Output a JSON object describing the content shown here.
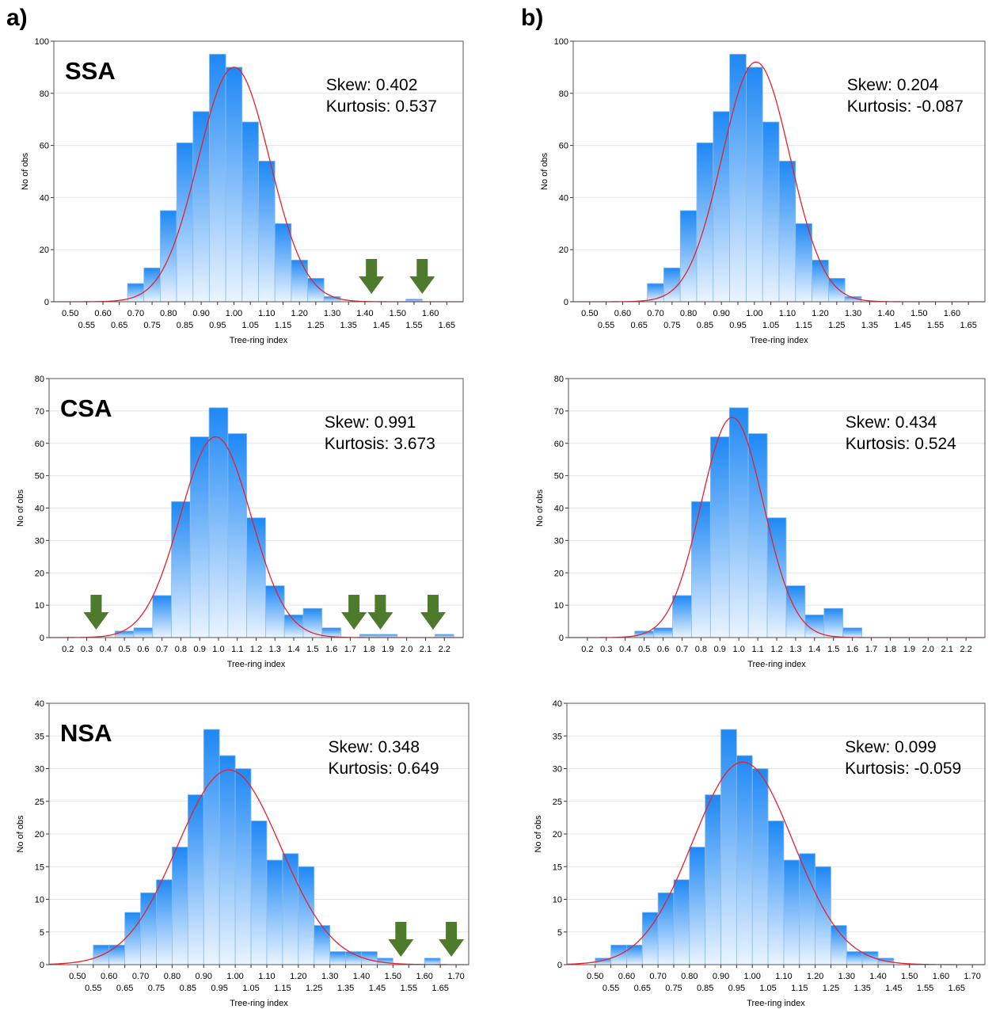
{
  "panel_labels": [
    "a)",
    "b)"
  ],
  "colors": {
    "bar_top": "#1E88F5",
    "bar_bottom": "#EAF4FF",
    "bar_edge": "#8CBCE8",
    "curve": "#E8202A",
    "arrow": "#4E7A2C"
  },
  "chart_data": [
    {
      "id": "ssa-a",
      "type": "bar",
      "region_label": "SSA",
      "stats": [
        "Skew: 0.402",
        "Kurtosis: 0.537"
      ],
      "xlabel": "Tree-ring index",
      "ylabel": "No of obs",
      "xlim": [
        0.45,
        1.7
      ],
      "ylim": [
        0,
        100
      ],
      "yticks": [
        0,
        20,
        40,
        60,
        80,
        100
      ],
      "xticks_upper": [
        "0.50",
        "0.60",
        "0.70",
        "0.80",
        "0.90",
        "1.00",
        "1.10",
        "1.20",
        "1.30",
        "1.40",
        "1.50",
        "1.60"
      ],
      "xticks_lower": [
        "0.55",
        "0.65",
        "0.75",
        "0.85",
        "0.95",
        "1.05",
        "1.15",
        "1.25",
        "1.35",
        "1.45",
        "1.55",
        "1.65"
      ],
      "bin_start": 0.675,
      "bin_width": 0.05,
      "values": [
        7,
        13,
        35,
        61,
        73,
        95,
        90,
        69,
        54,
        30,
        16,
        9,
        2,
        0,
        0,
        0,
        0,
        1
      ],
      "normal": {
        "mean": 1.0,
        "sd": 0.109,
        "peak": 90
      },
      "arrows": [
        1.42,
        1.575
      ]
    },
    {
      "id": "ssa-b",
      "type": "bar",
      "region_label": "",
      "stats": [
        "Skew: 0.204",
        "Kurtosis: -0.087"
      ],
      "xlabel": "Tree-ring index",
      "ylabel": "No of obs",
      "xlim": [
        0.45,
        1.7
      ],
      "ylim": [
        0,
        100
      ],
      "yticks": [
        0,
        20,
        40,
        60,
        80,
        100
      ],
      "xticks_upper": [
        "0.50",
        "0.60",
        "0.70",
        "0.80",
        "0.90",
        "1.00",
        "1.10",
        "1.20",
        "1.30",
        "1.40",
        "1.50",
        "1.60"
      ],
      "xticks_lower": [
        "0.55",
        "0.65",
        "0.75",
        "0.85",
        "0.95",
        "1.05",
        "1.15",
        "1.25",
        "1.35",
        "1.45",
        "1.55",
        "1.65"
      ],
      "bin_start": 0.675,
      "bin_width": 0.05,
      "values": [
        7,
        13,
        35,
        61,
        73,
        95,
        90,
        69,
        54,
        30,
        16,
        9,
        2
      ],
      "normal": {
        "mean": 1.005,
        "sd": 0.103,
        "peak": 92
      },
      "arrows": []
    },
    {
      "id": "csa-a",
      "type": "bar",
      "region_label": "CSA",
      "stats": [
        "Skew: 0.991",
        "Kurtosis: 3.673"
      ],
      "xlabel": "Tree-ring index",
      "ylabel": "No of obs",
      "xlim": [
        0.1,
        2.3
      ],
      "ylim": [
        0,
        80
      ],
      "yticks": [
        0,
        10,
        20,
        30,
        40,
        50,
        60,
        70,
        80
      ],
      "xticks_upper": [
        "0.2",
        "0.3",
        "0.4",
        "0.5",
        "0.6",
        "0.7",
        "0.8",
        "0.9",
        "1.0",
        "1.1",
        "1.2",
        "1.3",
        "1.4",
        "1.5",
        "1.6",
        "1.7",
        "1.8",
        "1.9",
        "2.0",
        "2.1",
        "2.2"
      ],
      "xticks_lower": [],
      "bin_start": 0.35,
      "bin_width": 0.1,
      "values": [
        0,
        2,
        3,
        13,
        42,
        62,
        71,
        63,
        37,
        16,
        7,
        9,
        3,
        0,
        1,
        1,
        0,
        0,
        1
      ],
      "normal": {
        "mean": 0.985,
        "sd": 0.188,
        "peak": 62
      },
      "arrows": [
        0.35,
        1.72,
        1.86,
        2.14
      ]
    },
    {
      "id": "csa-b",
      "type": "bar",
      "region_label": "",
      "stats": [
        "Skew: 0.434",
        "Kurtosis: 0.524"
      ],
      "xlabel": "Tree-ring index",
      "ylabel": "No of obs",
      "xlim": [
        0.1,
        2.3
      ],
      "ylim": [
        0,
        80
      ],
      "yticks": [
        0,
        10,
        20,
        30,
        40,
        50,
        60,
        70,
        80
      ],
      "xticks_upper": [
        "0.2",
        "0.3",
        "0.4",
        "0.5",
        "0.6",
        "0.7",
        "0.8",
        "0.9",
        "1.0",
        "1.1",
        "1.2",
        "1.3",
        "1.4",
        "1.5",
        "1.6",
        "1.7",
        "1.8",
        "1.9",
        "2.0",
        "2.1",
        "2.2"
      ],
      "xticks_lower": [],
      "bin_start": 0.35,
      "bin_width": 0.1,
      "values": [
        0,
        2,
        3,
        13,
        42,
        62,
        71,
        63,
        37,
        16,
        7,
        9,
        3
      ],
      "normal": {
        "mean": 0.965,
        "sd": 0.165,
        "peak": 68
      },
      "arrows": []
    },
    {
      "id": "nsa-a",
      "type": "bar",
      "region_label": "NSA",
      "stats": [
        "Skew: 0.348",
        "Kurtosis: 0.649"
      ],
      "xlabel": "Tree-ring index",
      "ylabel": "No of obs",
      "xlim": [
        0.41,
        1.74
      ],
      "ylim": [
        0,
        40
      ],
      "yticks": [
        0,
        5,
        10,
        15,
        20,
        25,
        30,
        35,
        40
      ],
      "xticks_upper": [
        "0.50",
        "0.60",
        "0.70",
        "0.80",
        "0.90",
        "1.00",
        "1.10",
        "1.20",
        "1.30",
        "1.40",
        "1.50",
        "1.60",
        "1.70"
      ],
      "xticks_lower": [
        "0.55",
        "0.65",
        "0.75",
        "0.85",
        "0.95",
        "1.05",
        "1.15",
        "1.25",
        "1.35",
        "1.45",
        "1.55",
        "1.65"
      ],
      "bin_start": 0.55,
      "bin_width": 0.05,
      "values": [
        3,
        3,
        8,
        11,
        13,
        18,
        26,
        36,
        32,
        30,
        22,
        16,
        17,
        15,
        6,
        2,
        2,
        2,
        1,
        0,
        0,
        1
      ],
      "normal": {
        "mean": 0.98,
        "sd": 0.164,
        "peak": 29.8
      },
      "arrows": [
        1.525,
        1.685
      ]
    },
    {
      "id": "nsa-b",
      "type": "bar",
      "region_label": "",
      "stats": [
        "Skew: 0.099",
        "Kurtosis: -0.059"
      ],
      "xlabel": "Tree-ring index",
      "ylabel": "No of obs",
      "xlim": [
        0.41,
        1.74
      ],
      "ylim": [
        0,
        40
      ],
      "yticks": [
        0,
        5,
        10,
        15,
        20,
        25,
        30,
        35,
        40
      ],
      "xticks_upper": [
        "0.50",
        "0.60",
        "0.70",
        "0.80",
        "0.90",
        "1.00",
        "1.10",
        "1.20",
        "1.30",
        "1.40",
        "1.50",
        "1.60",
        "1.70"
      ],
      "xticks_lower": [
        "0.55",
        "0.65",
        "0.75",
        "0.85",
        "0.95",
        "1.05",
        "1.15",
        "1.25",
        "1.35",
        "1.45",
        "1.55",
        "1.65"
      ],
      "bin_start": 0.5,
      "bin_width": 0.05,
      "values": [
        1,
        3,
        3,
        8,
        11,
        13,
        18,
        26,
        36,
        32,
        30,
        22,
        16,
        17,
        15,
        6,
        2,
        2,
        1
      ],
      "normal": {
        "mean": 0.97,
        "sd": 0.16,
        "peak": 31
      },
      "arrows": []
    }
  ]
}
